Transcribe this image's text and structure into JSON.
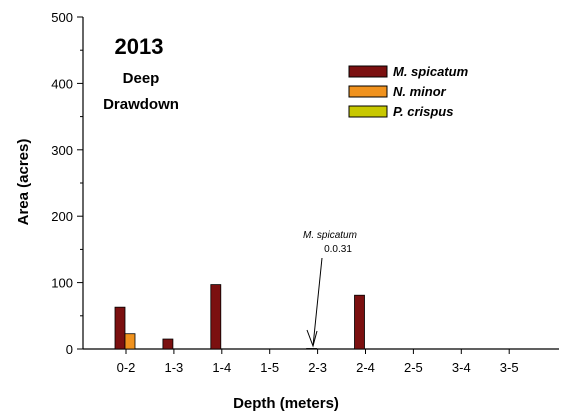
{
  "chart_data": {
    "type": "bar",
    "title": "2013",
    "subtitle_lines": [
      "Deep",
      "Drawdown"
    ],
    "xlabel": "Depth (meters)",
    "ylabel": "Area (acres)",
    "categories": [
      "0-2",
      "1-3",
      "1-4",
      "1-5",
      "2-3",
      "2-4",
      "2-5",
      "3-4",
      "3-5"
    ],
    "ylim": [
      0,
      500
    ],
    "yticks": [
      0,
      100,
      200,
      300,
      400,
      500
    ],
    "grid": false,
    "legend_position": "top-right",
    "series": [
      {
        "name": "M. spicatum",
        "color": "#7b1010",
        "values": [
          63,
          15,
          97,
          0,
          0.31,
          81,
          0,
          0,
          0
        ]
      },
      {
        "name": "N. minor",
        "color": "#f0921e",
        "values": [
          23,
          0,
          0,
          0,
          0,
          0,
          0,
          0,
          0
        ]
      },
      {
        "name": "P. crispus",
        "color": "#c8c800",
        "values": [
          0,
          0,
          0,
          0,
          0,
          0,
          0,
          0,
          0
        ]
      }
    ],
    "annotations": [
      {
        "category": "2-3",
        "lines": [
          "M. spicatum",
          "0.0.31"
        ]
      }
    ]
  }
}
